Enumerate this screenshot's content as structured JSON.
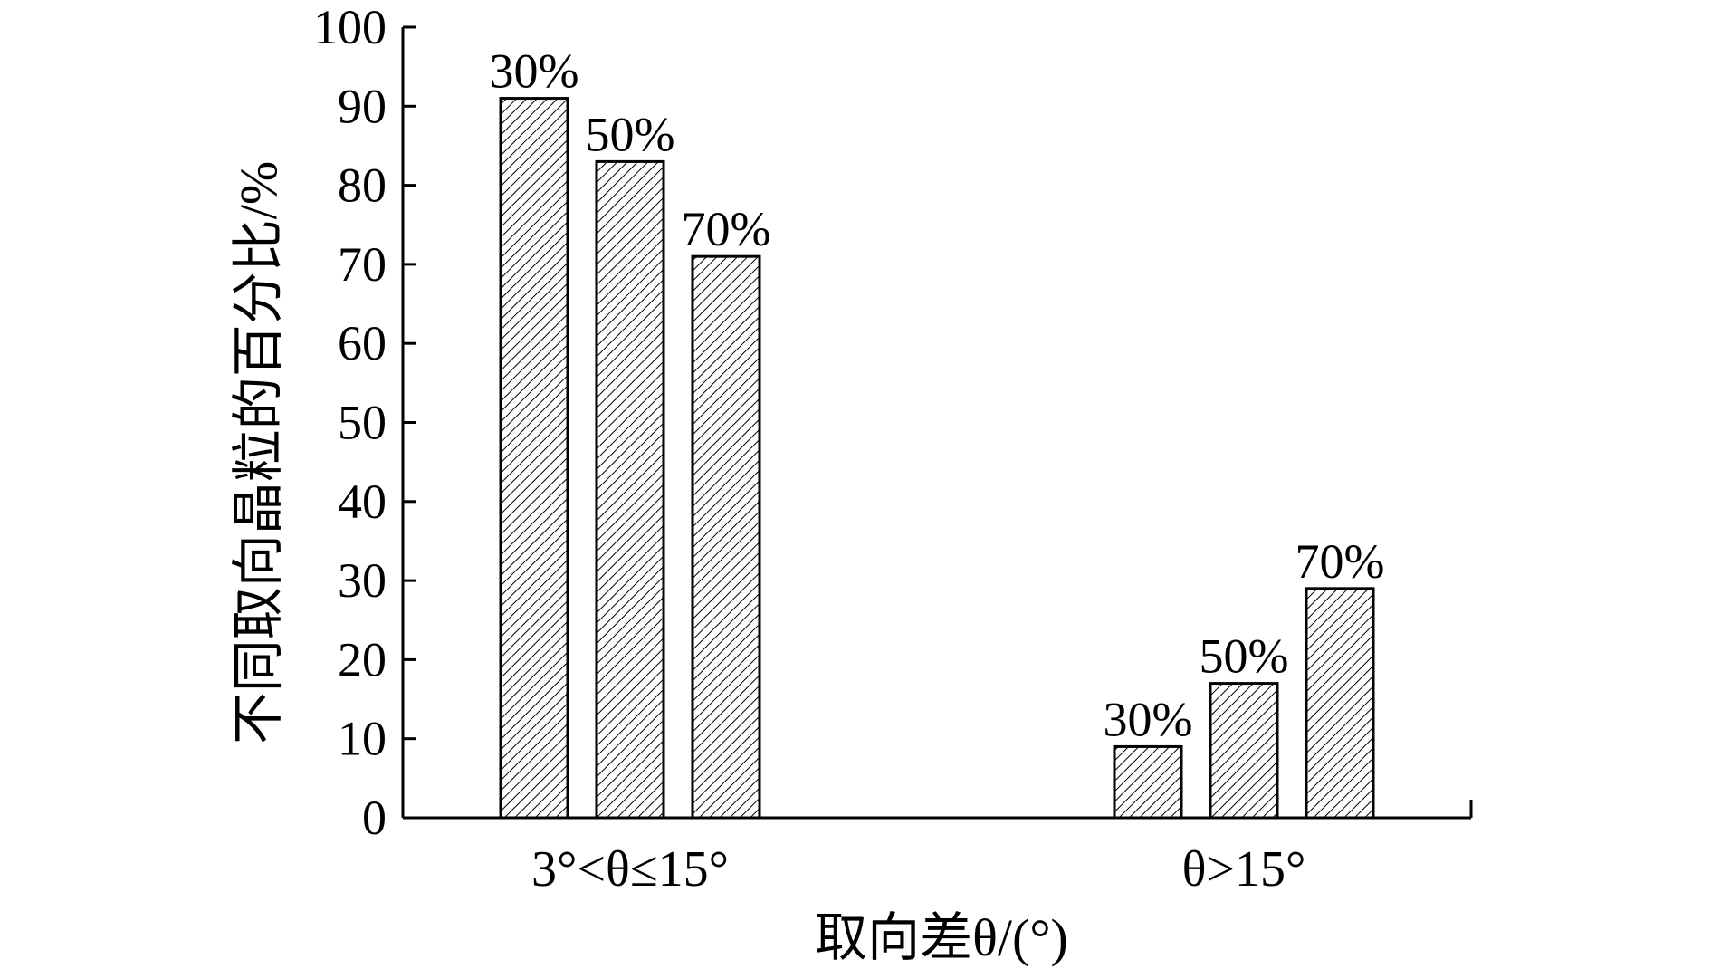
{
  "chart_data": {
    "type": "bar",
    "categories": [
      "3°<θ≤15°",
      "θ>15°"
    ],
    "series": [
      {
        "name": "30%",
        "values": [
          91,
          9
        ]
      },
      {
        "name": "50%",
        "values": [
          83,
          17
        ]
      },
      {
        "name": "70%",
        "values": [
          71,
          29
        ]
      }
    ],
    "data_labels": [
      "30%",
      "50%",
      "70%"
    ],
    "title": "",
    "xlabel": "取向差θ/(°)",
    "ylabel": "不同取向晶粒的百分比/%",
    "ylim": [
      0,
      100
    ],
    "yticks": [
      0,
      10,
      20,
      30,
      40,
      50,
      60,
      70,
      80,
      90,
      100
    ],
    "grid": false,
    "legend": "none",
    "bar_fill": "hatched",
    "colors": {
      "bar_fill": "#ffffff",
      "hatch": "#000000",
      "outline": "#000000"
    }
  }
}
